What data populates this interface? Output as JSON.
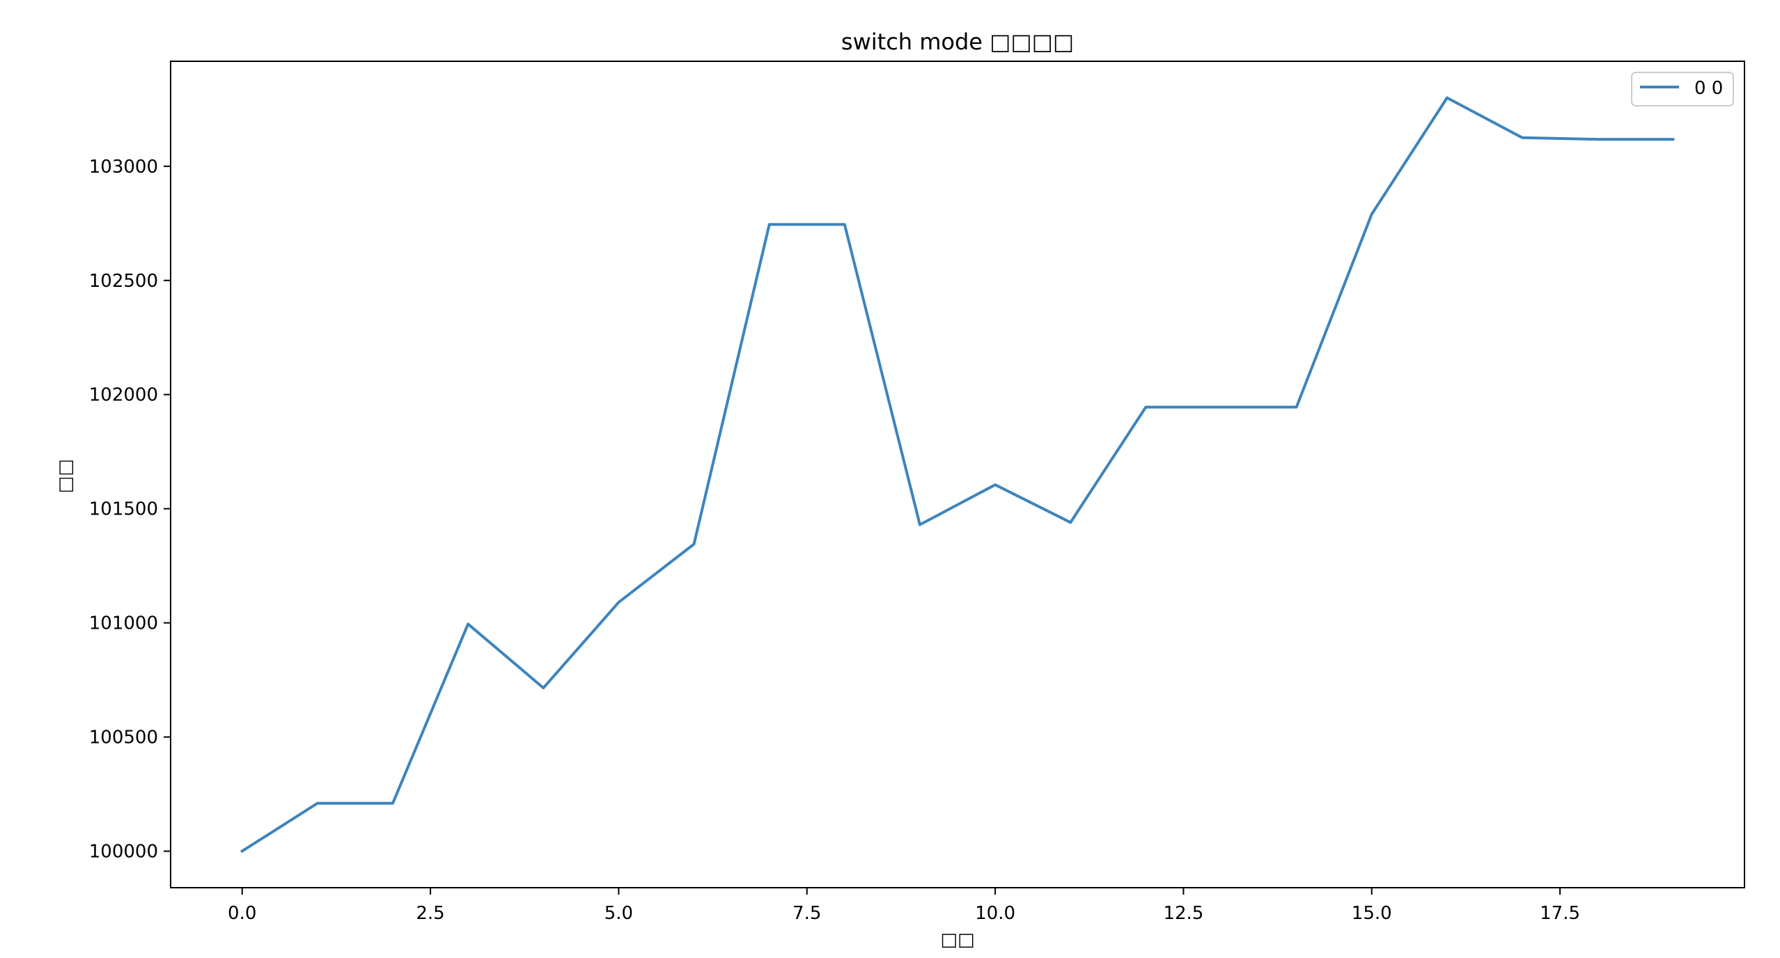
{
  "chart_data": {
    "type": "line",
    "title": "switch mode □□□□",
    "xlabel": "□□",
    "ylabel": "□□",
    "xlim": [
      -0.95,
      19.95
    ],
    "ylim": [
      99840,
      103460
    ],
    "xticks": [
      0.0,
      2.5,
      5.0,
      7.5,
      10.0,
      12.5,
      15.0,
      17.5
    ],
    "xtick_labels": [
      "0.0",
      "2.5",
      "5.0",
      "7.5",
      "10.0",
      "12.5",
      "15.0",
      "17.5"
    ],
    "yticks": [
      100000,
      100500,
      101000,
      101500,
      102000,
      102500,
      103000
    ],
    "ytick_labels": [
      "100000",
      "100500",
      "101000",
      "101500",
      "102000",
      "102500",
      "103000"
    ],
    "grid": false,
    "legend_position": "top-right",
    "series": [
      {
        "name": "0 0",
        "color": "#3d84bd",
        "x": [
          0,
          1,
          2,
          3,
          4,
          5,
          6,
          7,
          8,
          9,
          10,
          11,
          12,
          13,
          14,
          15,
          16,
          17,
          18,
          19
        ],
        "y": [
          100000,
          100210,
          100210,
          100995,
          100715,
          101090,
          101345,
          102745,
          102745,
          101430,
          101605,
          101440,
          101945,
          101945,
          101945,
          102790,
          103300,
          103125,
          103118,
          103118
        ]
      }
    ]
  }
}
